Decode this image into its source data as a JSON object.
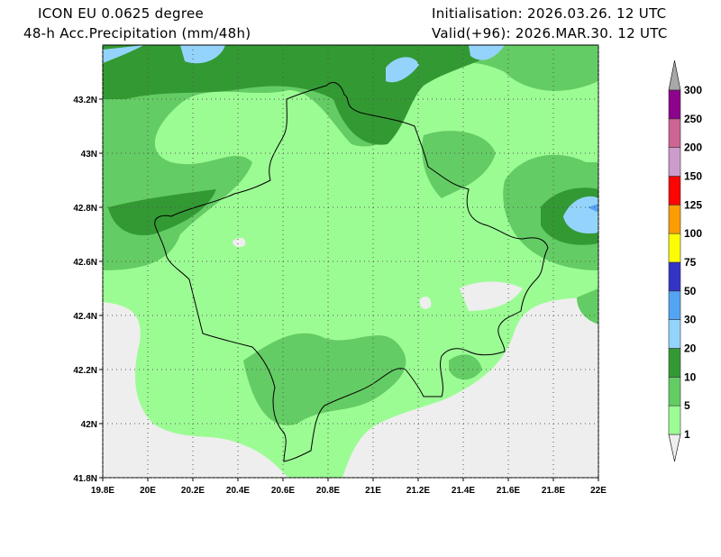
{
  "header": {
    "model": "ICON EU 0.0625 degree",
    "variable": "48-h Acc.Precipitation (mm/48h)",
    "init": "Initialisation: 2026.03.26. 12 UTC",
    "valid": "Valid(+96): 2026.MAR.30. 12 UTC"
  },
  "map": {
    "lat_labels": [
      "43.2N",
      "43N",
      "42.8N",
      "42.6N",
      "42.4N",
      "42.2N",
      "42N",
      "41.8N"
    ],
    "lat_values": [
      43.2,
      43.0,
      42.8,
      42.6,
      42.4,
      42.2,
      42.0,
      41.8
    ],
    "lon_labels": [
      "19.8E",
      "20E",
      "20.2E",
      "20.4E",
      "20.6E",
      "20.8E",
      "21E",
      "21.2E",
      "21.4E",
      "21.6E",
      "21.8E",
      "22E"
    ],
    "lon_values": [
      19.8,
      20.0,
      20.2,
      20.4,
      20.6,
      20.8,
      21.0,
      21.2,
      21.4,
      21.6,
      21.8,
      22.0
    ],
    "lon_range": [
      19.8,
      22.0
    ],
    "lat_range": [
      41.8,
      43.4
    ]
  },
  "colorbar": {
    "labels": [
      "1",
      "5",
      "10",
      "20",
      "30",
      "50",
      "75",
      "100",
      "125",
      "150",
      "200",
      "250",
      "300"
    ],
    "colors": [
      "#9cfc94",
      "#64cc64",
      "#339933",
      "#94d4fc",
      "#54a4f4",
      "#3434c4",
      "#fcfc04",
      "#fc9c04",
      "#fc0404",
      "#cc9ccc",
      "#cc6494",
      "#8c048c"
    ],
    "under_color": "#eeeeee",
    "over_color": "#a8a8a8"
  }
}
